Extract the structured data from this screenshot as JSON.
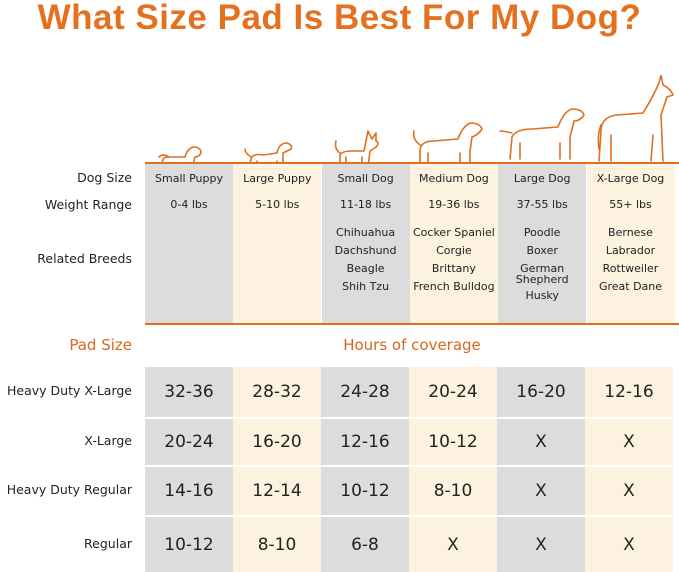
{
  "title": "What Size Pad Is Best For My Dog?",
  "row_labels": {
    "dog_size": "Dog Size",
    "weight_range": "Weight Range",
    "related_breeds": "Related Breeds"
  },
  "columns": [
    {
      "size": "Small Puppy",
      "weight": "0-4 lbs",
      "breeds": [],
      "shade": "gray",
      "icon": "small-puppy-icon"
    },
    {
      "size": "Large Puppy",
      "weight": "5-10 lbs",
      "breeds": [],
      "shade": "cream",
      "icon": "large-puppy-icon"
    },
    {
      "size": "Small Dog",
      "weight": "11-18 lbs",
      "breeds": [
        "Chihuahua",
        "Dachshund",
        "Beagle",
        "Shih Tzu"
      ],
      "shade": "gray",
      "icon": "small-dog-icon"
    },
    {
      "size": "Medium Dog",
      "weight": "19-36 lbs",
      "breeds": [
        "Cocker Spaniel",
        "Corgie",
        "Brittany",
        "French Bulldog"
      ],
      "shade": "cream",
      "icon": "medium-dog-icon"
    },
    {
      "size": "Large Dog",
      "weight": "37-55 lbs",
      "breeds": [
        "Poodle",
        "Boxer",
        "German Shepherd",
        "Husky"
      ],
      "shade": "gray",
      "icon": "large-dog-icon"
    },
    {
      "size": "X-Large Dog",
      "weight": "55+ lbs",
      "breeds": [
        "Bernese",
        "Labrador",
        "Rottweiler",
        "Great Dane"
      ],
      "shade": "cream",
      "icon": "x-large-dog-icon"
    }
  ],
  "pad_size_header": "Pad Size",
  "coverage_header": "Hours of coverage",
  "pads": [
    {
      "name": "Heavy Duty X-Large",
      "hours": [
        "32-36",
        "28-32",
        "24-28",
        "20-24",
        "16-20",
        "12-16"
      ]
    },
    {
      "name": "X-Large",
      "hours": [
        "20-24",
        "16-20",
        "12-16",
        "10-12",
        "X",
        "X"
      ]
    },
    {
      "name": "Heavy Duty Regular",
      "hours": [
        "14-16",
        "12-14",
        "10-12",
        "8-10",
        "X",
        "X"
      ]
    },
    {
      "name": "Regular",
      "hours": [
        "10-12",
        "8-10",
        "6-8",
        "X",
        "X",
        "X"
      ]
    }
  ],
  "colors": {
    "accent": "#e0701f",
    "gray": "#dcdcdc",
    "cream": "#fdf1df"
  }
}
